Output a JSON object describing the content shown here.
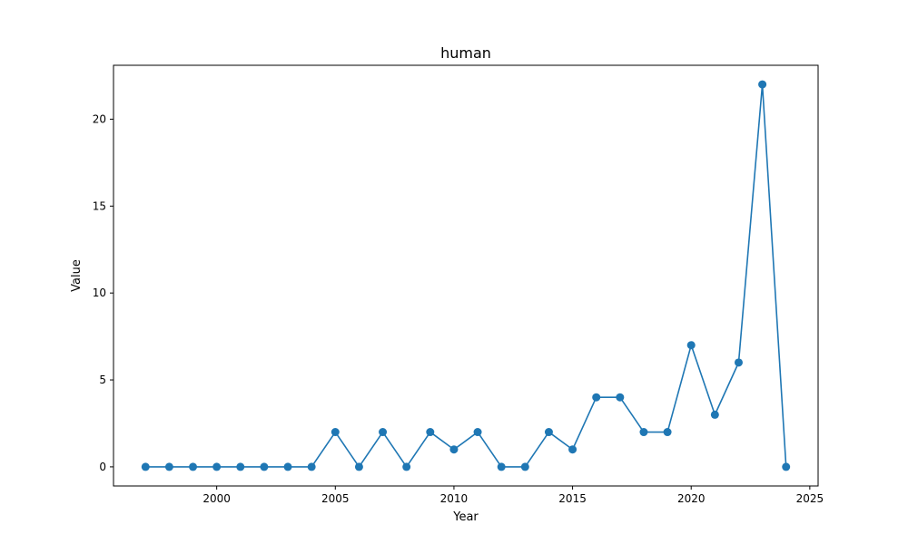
{
  "chart_data": {
    "type": "line",
    "title": "human",
    "xlabel": "Year",
    "ylabel": "Value",
    "xlim": [
      1995.65,
      2025.35
    ],
    "ylim": [
      -1.1,
      23.1
    ],
    "xticks": [
      2000,
      2005,
      2010,
      2015,
      2020,
      2025
    ],
    "yticks": [
      0,
      5,
      10,
      15,
      20
    ],
    "grid": false,
    "series": [
      {
        "name": "human",
        "color": "#1f77b4",
        "marker": "circle",
        "x": [
          1997,
          1998,
          1999,
          2000,
          2001,
          2002,
          2003,
          2004,
          2005,
          2006,
          2007,
          2008,
          2009,
          2010,
          2011,
          2012,
          2013,
          2014,
          2015,
          2016,
          2017,
          2018,
          2019,
          2020,
          2021,
          2022,
          2023,
          2024
        ],
        "y": [
          0,
          0,
          0,
          0,
          0,
          0,
          0,
          0,
          2,
          0,
          2,
          0,
          2,
          1,
          2,
          0,
          0,
          2,
          1,
          4,
          4,
          2,
          2,
          7,
          3,
          6,
          22,
          0
        ]
      }
    ]
  }
}
